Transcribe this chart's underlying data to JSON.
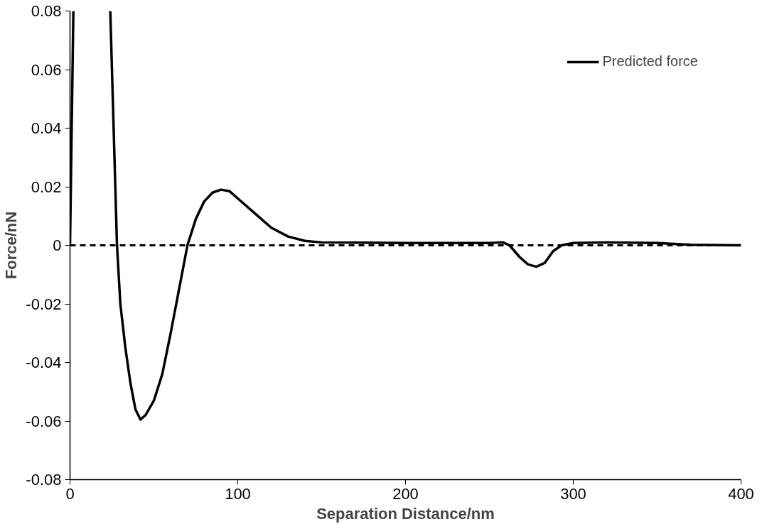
{
  "chart_data": {
    "type": "line",
    "xlabel": "Separation Distance/nm",
    "ylabel": "Force/nN",
    "x": [
      0,
      1,
      2,
      10,
      24,
      26,
      28,
      30,
      33,
      36,
      39,
      42,
      45,
      50,
      55,
      60,
      65,
      70,
      75,
      80,
      85,
      90,
      95,
      100,
      110,
      120,
      130,
      140,
      150,
      200,
      250,
      258,
      262,
      268,
      273,
      278,
      283,
      288,
      293,
      300,
      320,
      350,
      370,
      400
    ],
    "series": [
      {
        "name": "Predicted force",
        "color": "#000000",
        "values": [
          0.0,
          0.04,
          0.08,
          null,
          0.08,
          0.04,
          0.0,
          -0.02,
          -0.035,
          -0.047,
          -0.056,
          -0.0595,
          -0.058,
          -0.053,
          -0.044,
          -0.03,
          -0.015,
          0.0,
          0.009,
          0.015,
          0.018,
          0.019,
          0.0185,
          0.016,
          0.011,
          0.006,
          0.003,
          0.0015,
          0.001,
          0.0008,
          0.0008,
          0.001,
          0.0,
          -0.004,
          -0.0065,
          -0.0073,
          -0.006,
          -0.002,
          0.0,
          0.0008,
          0.001,
          0.0008,
          0.0002,
          0.0
        ]
      }
    ],
    "xlim": [
      0,
      400
    ],
    "xticks": [
      0,
      100,
      200,
      300,
      400
    ],
    "ylim": [
      -0.08,
      0.08
    ],
    "yticks": [
      -0.08,
      -0.06,
      -0.04,
      -0.02,
      0,
      0.02,
      0.04,
      0.06,
      0.08
    ],
    "ref_lines": [
      {
        "axis": "y",
        "value": 0,
        "color": "#000000",
        "line_style": "dashed"
      }
    ],
    "legend": "top right",
    "grid": false,
    "line_style": "solid",
    "marker": "none"
  }
}
